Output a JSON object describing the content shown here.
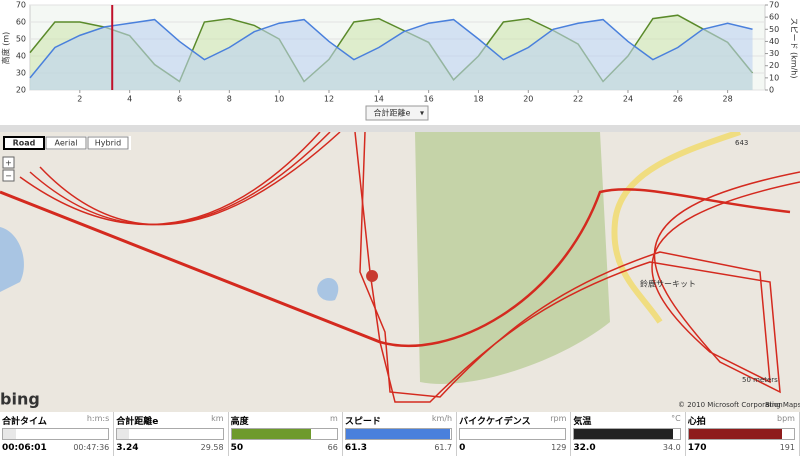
{
  "chart": {
    "type": "line",
    "y_label": "高度 (m)",
    "y2_label": "スピード (km/h)",
    "x": [
      0,
      1,
      2,
      3,
      4,
      5,
      6,
      7,
      8,
      9,
      10,
      11,
      12,
      13,
      14,
      15,
      16,
      17,
      18,
      19,
      20,
      21,
      22,
      23,
      24,
      25,
      26,
      27,
      28,
      29
    ],
    "series": [
      {
        "name": "高度",
        "color": "#5a8a2a",
        "fill": "#cfe6b0",
        "values": [
          42,
          60,
          60,
          57,
          52,
          35,
          25,
          60,
          62,
          58,
          50,
          25,
          38,
          60,
          62,
          55,
          48,
          26,
          40,
          60,
          62,
          55,
          47,
          25,
          40,
          62,
          64,
          56,
          48,
          30
        ]
      },
      {
        "name": "スピード",
        "color": "#4a80dc",
        "fill": "#bcd2f0",
        "axis": "y2",
        "values": [
          10,
          35,
          45,
          52,
          55,
          58,
          40,
          25,
          35,
          48,
          55,
          58,
          40,
          25,
          35,
          48,
          55,
          58,
          42,
          25,
          35,
          50,
          55,
          58,
          40,
          25,
          35,
          50,
          55,
          50
        ]
      }
    ],
    "xlim": [
      0,
      29.5
    ],
    "xticks": [
      2,
      4,
      6,
      8,
      10,
      12,
      14,
      16,
      18,
      20,
      22,
      24,
      26,
      28
    ],
    "ylim": [
      20,
      70
    ],
    "yticks": [
      20,
      30,
      40,
      50,
      60,
      70
    ],
    "y2lim": [
      0,
      70
    ],
    "y2ticks": [
      0,
      10,
      20,
      30,
      40,
      50,
      60,
      70
    ],
    "cursor_x": 3.3,
    "selector": "合計距離e"
  },
  "map": {
    "buttons": [
      "Road",
      "Aerial",
      "Hybrid"
    ],
    "zoom": [
      "+",
      "−"
    ],
    "route_number": "643",
    "place": "鈴鹿サーキット",
    "scale": "50 meters",
    "logo": "bing",
    "copyright": "© 2010 Microsoft Corporation",
    "link": "Bing Maps"
  },
  "stats": [
    {
      "label": "合計タイム",
      "unit": "h:m:s",
      "value": "00:06:01",
      "max": "00:47:36",
      "color": "#e8e8e8"
    },
    {
      "label": "合計距離e",
      "unit": "km",
      "value": "3.24",
      "max": "29.58",
      "color": "#e8e8e8"
    },
    {
      "label": "高度",
      "unit": "m",
      "value": "50",
      "max": "66",
      "color": "#6e9a2c"
    },
    {
      "label": "スピード",
      "unit": "km/h",
      "value": "61.3",
      "max": "61.7",
      "color": "#4a80dc"
    },
    {
      "label": "バイクケイデンス",
      "unit": "rpm",
      "value": "0",
      "max": "129",
      "color": "#e8e8e8"
    },
    {
      "label": "気温",
      "unit": "°C",
      "value": "32.0",
      "max": "34.0",
      "color": "#222222"
    },
    {
      "label": "心拍",
      "unit": "bpm",
      "value": "170",
      "max": "191",
      "color": "#8e1c1c"
    }
  ]
}
